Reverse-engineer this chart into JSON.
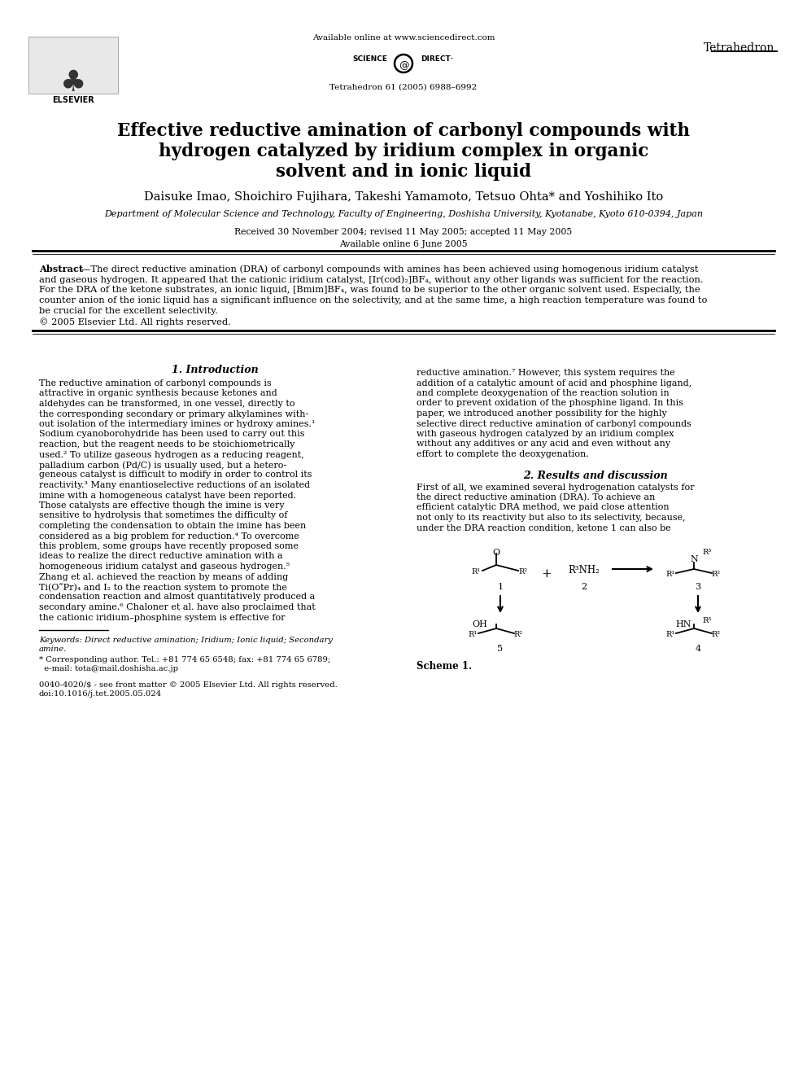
{
  "title_line1": "Effective reductive amination of carbonyl compounds with",
  "title_line2": "hydrogen catalyzed by iridium complex in organic",
  "title_line3": "solvent and in ionic liquid",
  "authors": "Daisuke Imao, Shoichiro Fujihara, Takeshi Yamamoto, Tetsuo Ohta* and Yoshihiko Ito",
  "affiliation": "Department of Molecular Science and Technology, Faculty of Engineering, Doshisha University, Kyotanabe, Kyoto 610-0394, Japan",
  "received": "Received 30 November 2004; revised 11 May 2005; accepted 11 May 2005",
  "available": "Available online 6 June 2005",
  "journal_header": "Available online at www.sciencedirect.com",
  "journal_name": "Tetrahedron",
  "journal_issue": "Tetrahedron 61 (2005) 6988–6992",
  "abstract_bold": "Abstract",
  "abstract_rest_lines": [
    "—The direct reductive amination (DRA) of carbonyl compounds with amines has been achieved using homogenous iridium catalyst",
    "and gaseous hydrogen. It appeared that the cationic iridium catalyst, [Ir(cod)₂]BF₄, without any other ligands was sufficient for the reaction.",
    "For the DRA of the ketone substrates, an ionic liquid, [Bmim]BF₄, was found to be superior to the other organic solvent used. Especially, the",
    "counter anion of the ionic liquid has a significant influence on the selectivity, and at the same time, a high reaction temperature was found to",
    "be crucial for the excellent selectivity.",
    "© 2005 Elsevier Ltd. All rights reserved."
  ],
  "section1_title": "1. Introduction",
  "intro_col1_lines": [
    "The reductive amination of carbonyl compounds is",
    "attractive in organic synthesis because ketones and",
    "aldehydes can be transformed, in one vessel, directly to",
    "the corresponding secondary or primary alkylamines with-",
    "out isolation of the intermediary imines or hydroxy amines.¹",
    "Sodium cyanoborohydride has been used to carry out this",
    "reaction, but the reagent needs to be stoichiometrically",
    "used.² To utilize gaseous hydrogen as a reducing reagent,",
    "palladium carbon (Pd/C) is usually used, but a hetero-",
    "geneous catalyst is difficult to modify in order to control its",
    "reactivity.³ Many enantioselective reductions of an isolated",
    "imine with a homogeneous catalyst have been reported.",
    "Those catalysts are effective though the imine is very",
    "sensitive to hydrolysis that sometimes the difficulty of",
    "completing the condensation to obtain the imine has been",
    "considered as a big problem for reduction.⁴ To overcome",
    "this problem, some groups have recently proposed some",
    "ideas to realize the direct reductive amination with a",
    "homogeneous iridium catalyst and gaseous hydrogen.⁵",
    "Zhang et al. achieved the reaction by means of adding",
    "Ti(OʺPr)₄ and I₂ to the reaction system to promote the",
    "condensation reaction and almost quantitatively produced a",
    "secondary amine.⁶ Chaloner et al. have also proclaimed that",
    "the cationic iridium–phosphine system is effective for"
  ],
  "intro_col2_lines": [
    "reductive amination.⁷ However, this system requires the",
    "addition of a catalytic amount of acid and phosphine ligand,",
    "and complete deoxygenation of the reaction solution in",
    "order to prevent oxidation of the phosphine ligand. In this",
    "paper, we introduced another possibility for the highly",
    "selective direct reductive amination of carbonyl compounds",
    "with gaseous hydrogen catalyzed by an iridium complex",
    "without any additives or any acid and even without any",
    "effort to complete the deoxygenation."
  ],
  "section2_title": "2. Results and discussion",
  "results_col2_lines": [
    "First of all, we examined several hydrogenation catalysts for",
    "the direct reductive amination (DRA). To achieve an",
    "efficient catalytic DRA method, we paid close attention",
    "not only to its reactivity but also to its selectivity, because,",
    "under the DRA reaction condition, ketone 1 can also be"
  ],
  "keywords_line1": "Keywords: Direct reductive amination; Iridium; Ionic liquid; Secondary",
  "keywords_line2": "amine.",
  "corresponding_line1": "* Corresponding author. Tel.: +81 774 65 6548; fax: +81 774 65 6789;",
  "corresponding_line2": "  e-mail: tota@mail.doshisha.ac.jp",
  "copyright_line1": "0040-4020/$ - see front matter © 2005 Elsevier Ltd. All rights reserved.",
  "copyright_line2": "doi:10.1016/j.tet.2005.05.024",
  "scheme_label": "Scheme 1.",
  "bg_color": "#ffffff"
}
